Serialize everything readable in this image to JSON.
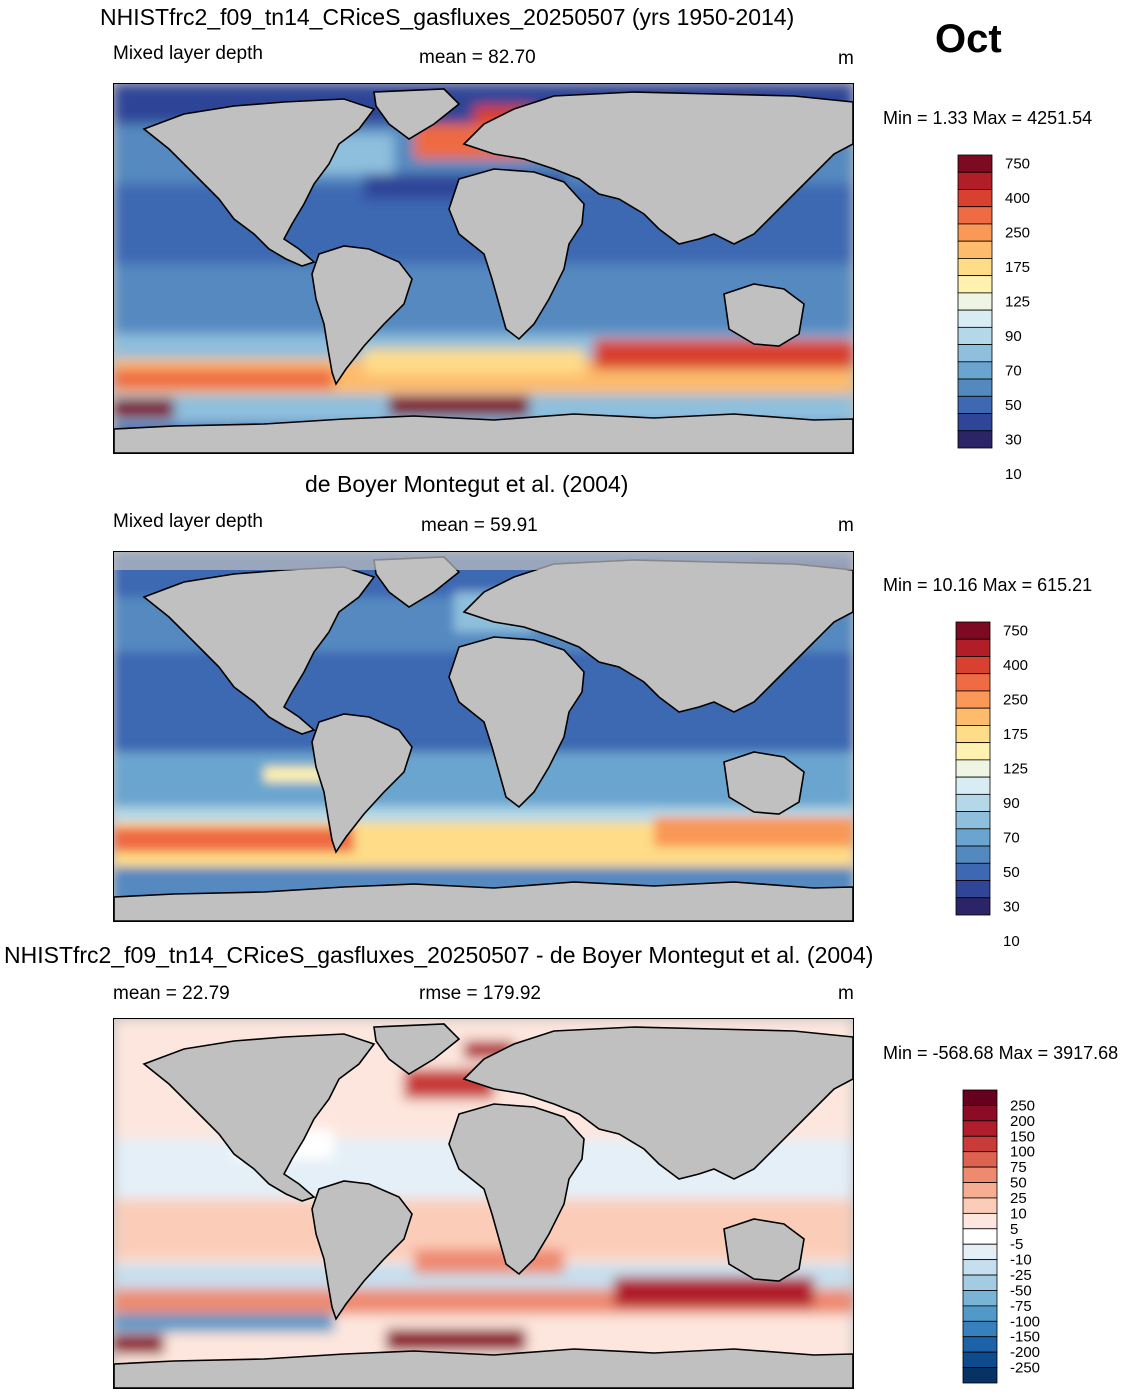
{
  "month": "Oct",
  "units": "m",
  "panels": [
    {
      "id": "model",
      "title": "NHISTfrc2_f09_tn14_CRiceS_gasfluxes_20250507 (yrs 1950-2014)",
      "left_label": "Mixed layer depth",
      "center_label": "mean =  82.70",
      "right_label": "m",
      "minmax": "Min =   1.33 Max = 4251.54",
      "colorbar": {
        "colors": [
          "#2b2466",
          "#2f4597",
          "#3e68b2",
          "#5489c0",
          "#6aa5cf",
          "#8ebfdd",
          "#b4d8e8",
          "#d7ecf3",
          "#eef6e3",
          "#fff2b0",
          "#fedc88",
          "#fdbb6c",
          "#f99857",
          "#ef6b43",
          "#d8402f",
          "#b21e27",
          "#7e0a22"
        ],
        "labels": [
          "750",
          "400",
          "250",
          "175",
          "125",
          "90",
          "70",
          "50",
          "30",
          "10"
        ]
      }
    },
    {
      "id": "obs",
      "title": "de Boyer Montegut et al. (2004)",
      "left_label": "Mixed layer depth",
      "center_label": "mean =  59.91",
      "right_label": "m",
      "minmax": "Min =  10.16 Max = 615.21",
      "colorbar": {
        "colors": [
          "#2b2466",
          "#2f4597",
          "#3e68b2",
          "#5489c0",
          "#6aa5cf",
          "#8ebfdd",
          "#b4d8e8",
          "#d7ecf3",
          "#eef6e3",
          "#fff2b0",
          "#fedc88",
          "#fdbb6c",
          "#f99857",
          "#ef6b43",
          "#d8402f",
          "#b21e27",
          "#7e0a22"
        ],
        "labels": [
          "750",
          "400",
          "250",
          "175",
          "125",
          "90",
          "70",
          "50",
          "30",
          "10"
        ]
      }
    },
    {
      "id": "diff",
      "title": "NHISTfrc2_f09_tn14_CRiceS_gasfluxes_20250507 - de Boyer Montegut et al. (2004)",
      "left_label": "mean =  22.79",
      "center_label": "rmse = 179.92",
      "right_label": "m",
      "minmax": "Min = -568.68 Max = 3917.68",
      "colorbar": {
        "colors": [
          "#063264",
          "#0d4a8e",
          "#1c62a8",
          "#3580bd",
          "#5199c9",
          "#79b3d6",
          "#a3cbe2",
          "#c6dfee",
          "#e4eff7",
          "#ffffff",
          "#fde6dd",
          "#fbcdb9",
          "#f6ad91",
          "#ee8a6f",
          "#dd624f",
          "#c83b38",
          "#b01e2c",
          "#8c0c25",
          "#67001f"
        ],
        "labels": [
          "250",
          "200",
          "150",
          "100",
          "75",
          "50",
          "25",
          "10",
          "5",
          "-5",
          "-10",
          "-25",
          "-50",
          "-75",
          "-100",
          "-150",
          "-200",
          "-250"
        ]
      }
    }
  ]
}
